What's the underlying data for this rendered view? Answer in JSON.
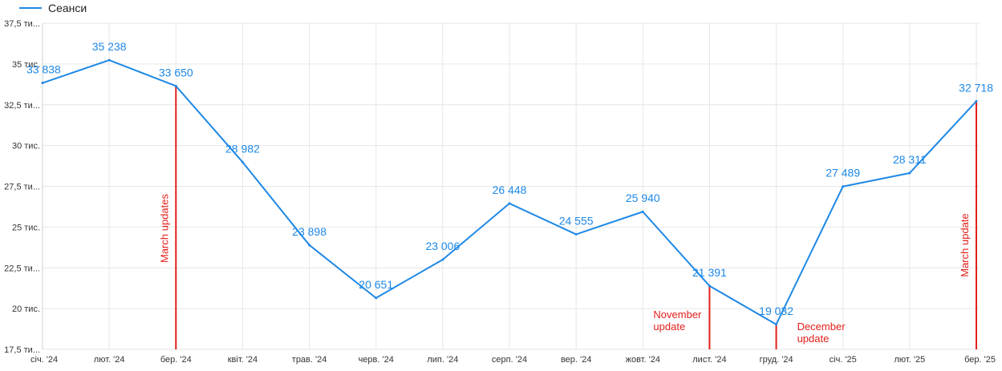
{
  "chart_data": {
    "type": "line",
    "categories": [
      "січ. '24",
      "лют. '24",
      "бер. '24",
      "квіт. '24",
      "трав. '24",
      "черв. '24",
      "лип. '24",
      "серп. '24",
      "вер. '24",
      "жовт. '24",
      "лист. '24",
      "груд. '24",
      "січ. '25",
      "лют. '25",
      "бер. '25"
    ],
    "series": [
      {
        "name": "Сеанси",
        "values": [
          33838,
          35238,
          33650,
          28982,
          23898,
          20651,
          23006,
          26448,
          24555,
          25940,
          21391,
          19032,
          27489,
          28311,
          32718
        ],
        "labels": [
          "33 838",
          "35 238",
          "33 650",
          "28 982",
          "23 898",
          "20 651",
          "23 006",
          "26 448",
          "24 555",
          "25 940",
          "21 391",
          "19 032",
          "27 489",
          "28 311",
          "32 718"
        ],
        "color": "#1e88e5"
      }
    ],
    "ylim": [
      17500,
      37500
    ],
    "yticks": [
      17500,
      20000,
      22500,
      25000,
      27500,
      30000,
      32500,
      35000,
      37500
    ],
    "ytick_labels": [
      "17,5 ти...",
      "20 тис.",
      "22,5 ти...",
      "25 тис.",
      "27,5 ти...",
      "30 тис.",
      "32,5 ти...",
      "35 тис.",
      "37,5 ти..."
    ],
    "grid": true,
    "legend": "top-left",
    "annotation_color": "#e0201b",
    "annotations": [
      {
        "category_index": 2,
        "value": 33650,
        "text": [
          "March updates"
        ],
        "orientation": "vertical"
      },
      {
        "category_index": 10,
        "value": 21391,
        "text": [
          "November",
          "update"
        ],
        "orientation": "horizontal"
      },
      {
        "category_index": 11,
        "value": 19032,
        "text": [
          "December",
          "update"
        ],
        "orientation": "horizontal"
      },
      {
        "category_index": 14,
        "value": 32718,
        "text": [
          "March update"
        ],
        "orientation": "vertical"
      }
    ]
  }
}
